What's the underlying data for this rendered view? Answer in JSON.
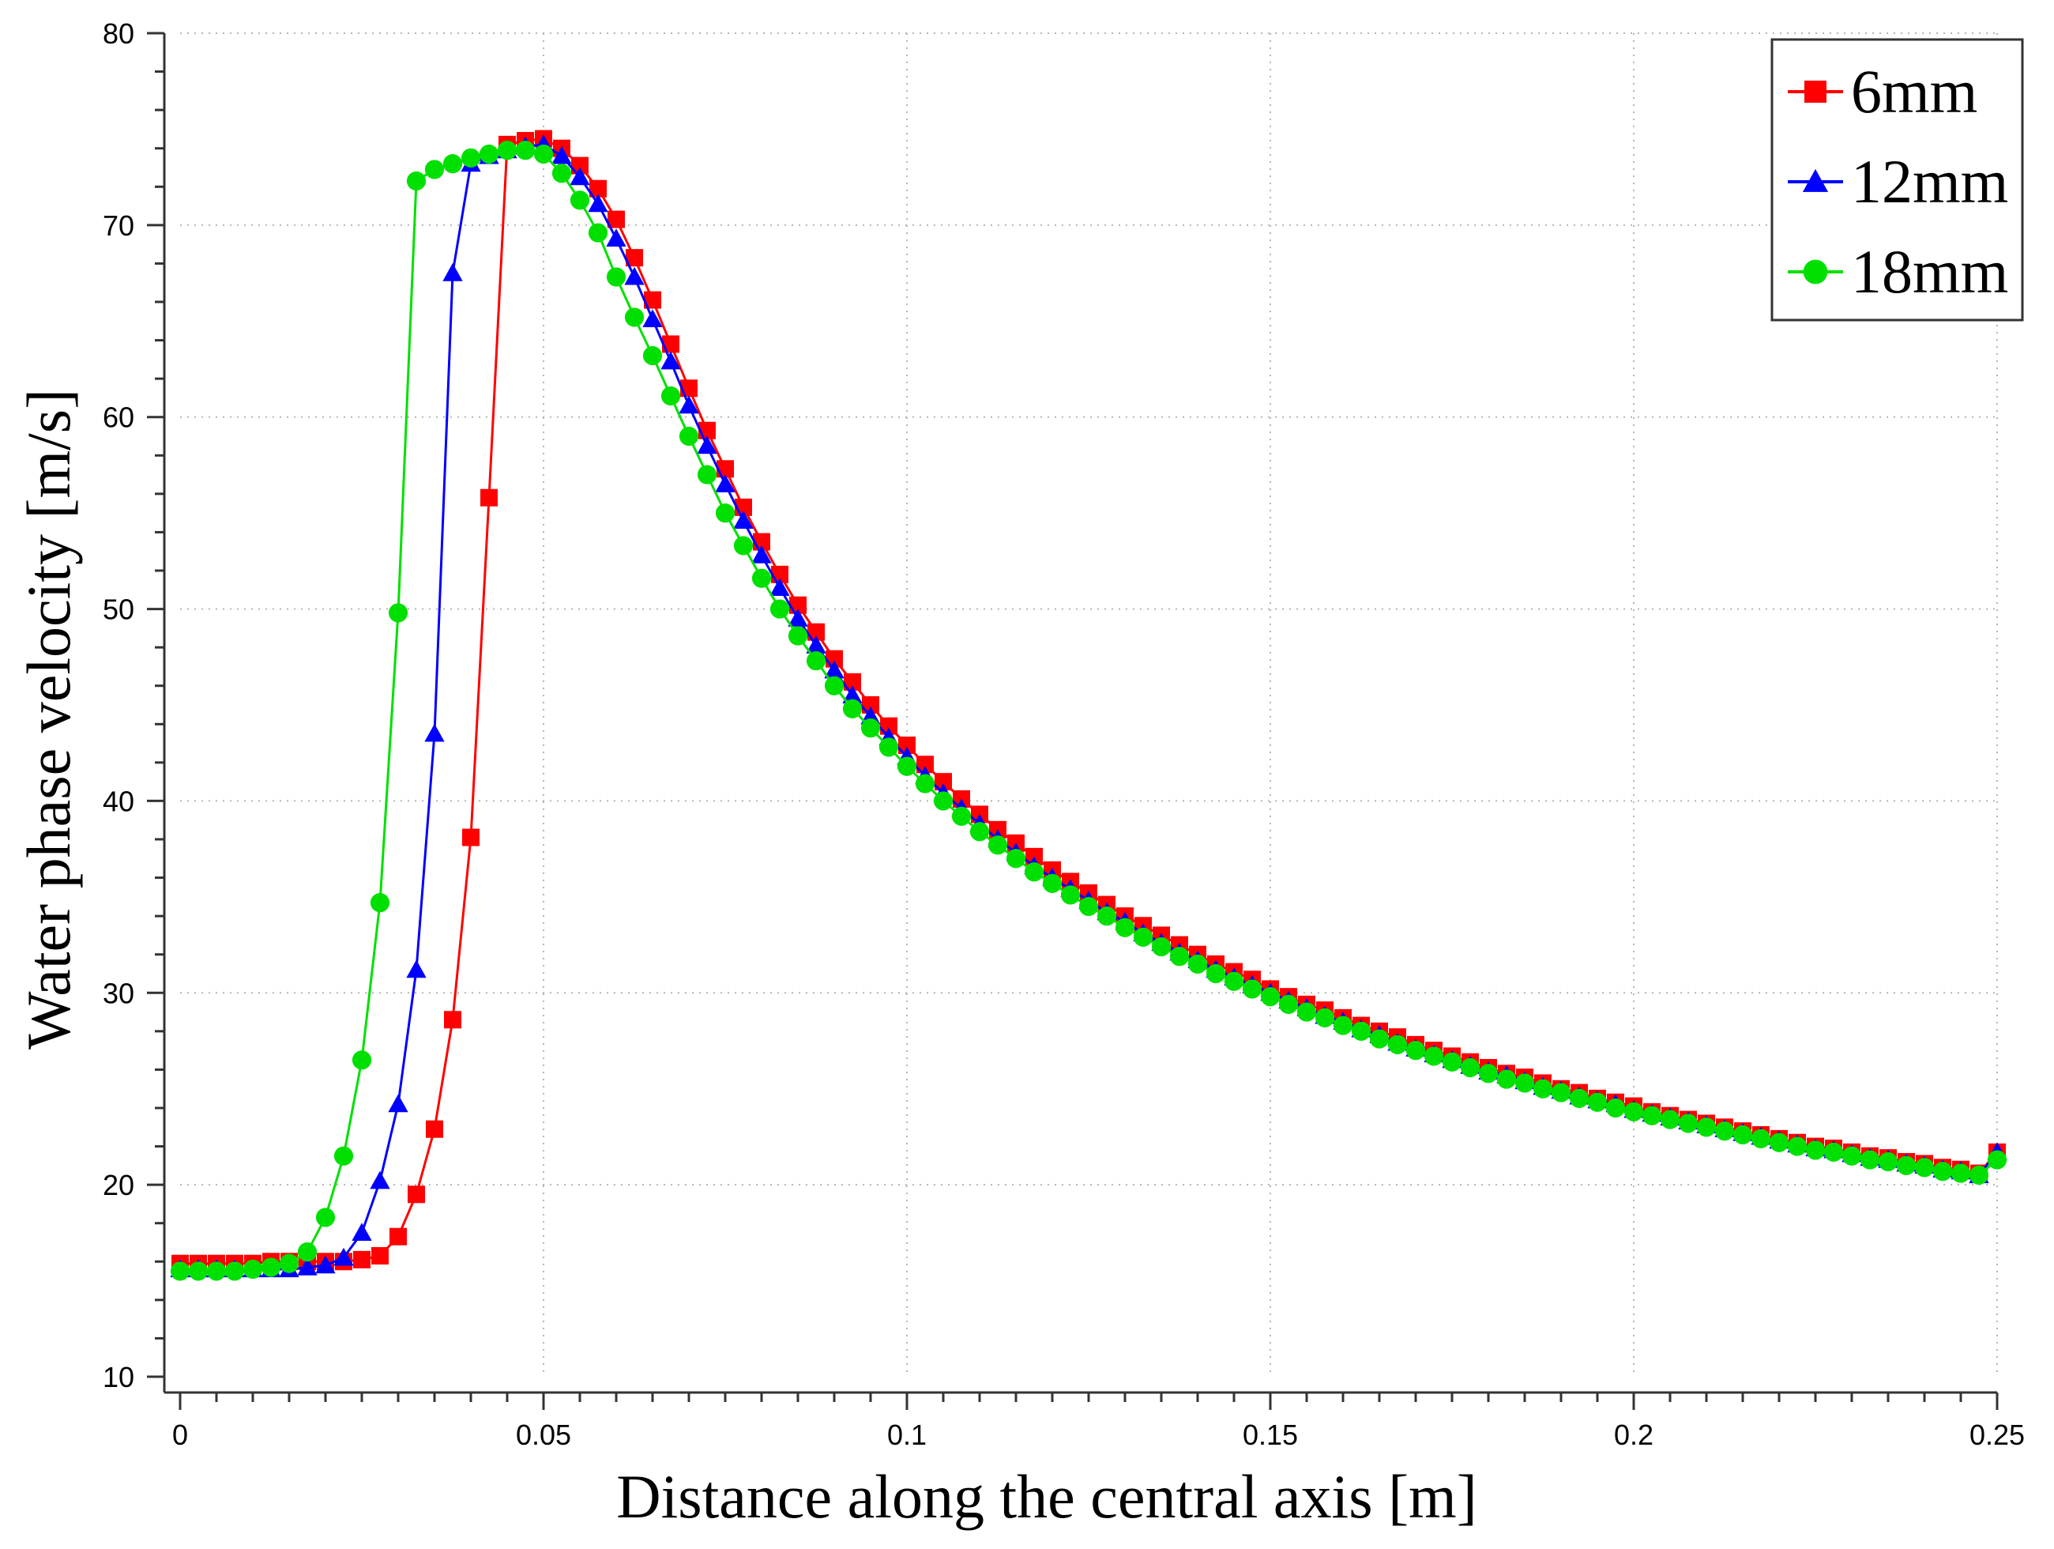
{
  "chart_data": {
    "type": "line",
    "title": "",
    "xlabel": "Distance along the central axis [m]",
    "ylabel": "Water phase velocity [m/s]",
    "xlim": [
      0,
      0.25
    ],
    "ylim": [
      10,
      80
    ],
    "grid": true,
    "legend_position": "top-right",
    "xticks": [
      0,
      0.05,
      0.1,
      0.15,
      0.2,
      0.25
    ],
    "xtick_labels": [
      "0",
      "0.05",
      "0.1",
      "0.15",
      "0.2",
      "0.25"
    ],
    "yticks": [
      10,
      20,
      30,
      40,
      50,
      60,
      70,
      80
    ],
    "ytick_labels": [
      "10",
      "20",
      "30",
      "40",
      "50",
      "60",
      "70",
      "80"
    ],
    "x": [
      0,
      0.0025,
      0.005,
      0.0075,
      0.01,
      0.0125,
      0.015,
      0.0175,
      0.02,
      0.0225,
      0.025,
      0.0275,
      0.03,
      0.0325,
      0.035,
      0.0375,
      0.04,
      0.0425,
      0.045,
      0.0475,
      0.05,
      0.0525,
      0.055,
      0.0575,
      0.06,
      0.0625,
      0.065,
      0.0675,
      0.07,
      0.0725,
      0.075,
      0.0775,
      0.08,
      0.0825,
      0.085,
      0.0875,
      0.09,
      0.0925,
      0.095,
      0.0975,
      0.1,
      0.1025,
      0.105,
      0.1075,
      0.11,
      0.1125,
      0.115,
      0.1175,
      0.12,
      0.1225,
      0.125,
      0.1275,
      0.13,
      0.1325,
      0.135,
      0.1375,
      0.14,
      0.1425,
      0.145,
      0.1475,
      0.15,
      0.1525,
      0.155,
      0.1575,
      0.16,
      0.1625,
      0.165,
      0.1675,
      0.17,
      0.1725,
      0.175,
      0.1775,
      0.18,
      0.1825,
      0.185,
      0.1875,
      0.19,
      0.1925,
      0.195,
      0.1975,
      0.2,
      0.2025,
      0.205,
      0.2075,
      0.21,
      0.2125,
      0.215,
      0.2175,
      0.22,
      0.2225,
      0.225,
      0.2275,
      0.23,
      0.2325,
      0.235,
      0.2375,
      0.24,
      0.2425,
      0.245,
      0.2475,
      0.25
    ],
    "series": [
      {
        "name": "6mm",
        "color": "#ff0000",
        "marker": "square",
        "values": [
          15.9,
          15.9,
          15.9,
          15.9,
          15.9,
          16.0,
          16.0,
          16.0,
          16.0,
          16.0,
          16.1,
          16.3,
          17.3,
          19.5,
          22.9,
          28.6,
          38.1,
          55.8,
          74.2,
          74.4,
          74.5,
          74.0,
          73.1,
          71.9,
          70.3,
          68.3,
          66.1,
          63.8,
          61.5,
          59.3,
          57.3,
          55.3,
          53.5,
          51.8,
          50.2,
          48.8,
          47.4,
          46.2,
          45.0,
          43.9,
          42.9,
          41.9,
          41.0,
          40.1,
          39.3,
          38.5,
          37.8,
          37.1,
          36.4,
          35.8,
          35.2,
          34.6,
          34.0,
          33.5,
          33.0,
          32.5,
          32.0,
          31.5,
          31.1,
          30.7,
          30.2,
          29.8,
          29.4,
          29.1,
          28.7,
          28.3,
          28.0,
          27.7,
          27.3,
          27.0,
          26.7,
          26.4,
          26.1,
          25.8,
          25.6,
          25.3,
          25.0,
          24.8,
          24.5,
          24.3,
          24.1,
          23.8,
          23.6,
          23.4,
          23.2,
          23.0,
          22.8,
          22.6,
          22.4,
          22.2,
          22.0,
          21.9,
          21.7,
          21.5,
          21.4,
          21.2,
          21.1,
          20.9,
          20.8,
          20.6,
          21.7
        ]
      },
      {
        "name": "12mm",
        "color": "#0000ff",
        "marker": "triangle",
        "values": [
          15.6,
          15.6,
          15.6,
          15.6,
          15.6,
          15.6,
          15.6,
          15.7,
          15.8,
          16.2,
          17.5,
          20.2,
          24.2,
          31.2,
          43.5,
          67.5,
          73.2,
          73.6,
          73.9,
          74.1,
          74.2,
          73.6,
          72.5,
          71.1,
          69.3,
          67.3,
          65.1,
          62.9,
          60.6,
          58.5,
          56.5,
          54.6,
          52.8,
          51.1,
          49.5,
          48.1,
          46.8,
          45.5,
          44.4,
          43.3,
          42.3,
          41.3,
          40.4,
          39.6,
          38.8,
          38.0,
          37.3,
          36.6,
          36.0,
          35.4,
          34.8,
          34.2,
          33.7,
          33.1,
          32.6,
          32.1,
          31.7,
          31.2,
          30.8,
          30.4,
          30.0,
          29.6,
          29.2,
          28.8,
          28.5,
          28.1,
          27.8,
          27.4,
          27.1,
          26.8,
          26.5,
          26.2,
          25.9,
          25.7,
          25.4,
          25.1,
          24.9,
          24.6,
          24.4,
          24.2,
          23.9,
          23.7,
          23.5,
          23.3,
          23.1,
          22.9,
          22.7,
          22.5,
          22.3,
          22.1,
          21.9,
          21.8,
          21.6,
          21.4,
          21.3,
          21.1,
          21.0,
          20.8,
          20.7,
          20.5,
          21.7
        ]
      },
      {
        "name": "18mm",
        "color": "#00e000",
        "marker": "circle",
        "values": [
          15.5,
          15.5,
          15.5,
          15.5,
          15.6,
          15.7,
          15.9,
          16.5,
          18.3,
          21.5,
          26.5,
          34.7,
          49.8,
          72.3,
          72.9,
          73.2,
          73.5,
          73.7,
          73.9,
          73.9,
          73.7,
          72.7,
          71.3,
          69.6,
          67.3,
          65.2,
          63.2,
          61.1,
          59.0,
          57.0,
          55.0,
          53.3,
          51.6,
          50.0,
          48.6,
          47.3,
          46.0,
          44.8,
          43.8,
          42.8,
          41.8,
          40.9,
          40.0,
          39.2,
          38.4,
          37.7,
          37.0,
          36.3,
          35.7,
          35.1,
          34.5,
          34.0,
          33.4,
          32.9,
          32.4,
          31.9,
          31.5,
          31.0,
          30.6,
          30.2,
          29.8,
          29.4,
          29.0,
          28.7,
          28.3,
          28.0,
          27.6,
          27.3,
          27.0,
          26.7,
          26.4,
          26.1,
          25.8,
          25.5,
          25.3,
          25.0,
          24.8,
          24.5,
          24.3,
          24.0,
          23.8,
          23.6,
          23.4,
          23.2,
          23.0,
          22.8,
          22.6,
          22.4,
          22.2,
          22.0,
          21.8,
          21.7,
          21.5,
          21.3,
          21.2,
          21.0,
          20.9,
          20.7,
          20.6,
          20.5,
          21.3
        ]
      }
    ]
  }
}
